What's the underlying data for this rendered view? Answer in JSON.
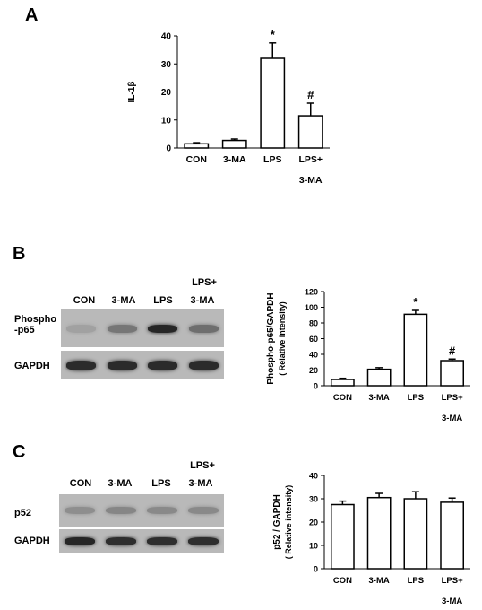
{
  "panels": {
    "a": "A",
    "b": "B",
    "c": "C"
  },
  "blots": {
    "b": {
      "lanes": [
        "CON",
        "3-MA",
        "LPS",
        "3-MA"
      ],
      "lanes_top": [
        "",
        "",
        "",
        "LPS+"
      ],
      "rows": [
        {
          "label_lines": [
            "Phospho",
            "-p65"
          ],
          "intensity": [
            0.18,
            0.45,
            0.95,
            0.5
          ]
        },
        {
          "label_lines": [
            "GAPDH"
          ],
          "intensity": [
            0.92,
            0.92,
            0.92,
            0.92
          ]
        }
      ]
    },
    "c": {
      "lanes": [
        "CON",
        "3-MA",
        "LPS",
        "3-MA"
      ],
      "lanes_top": [
        "",
        "",
        "",
        "LPS+"
      ],
      "rows": [
        {
          "label_lines": [
            "p52"
          ],
          "intensity": [
            0.3,
            0.35,
            0.33,
            0.33
          ]
        },
        {
          "label_lines": [
            "GAPDH"
          ],
          "intensity": [
            0.95,
            0.9,
            0.9,
            0.9
          ]
        }
      ]
    }
  },
  "chart_data": [
    {
      "id": "a",
      "type": "bar",
      "categories": [
        [
          "CON"
        ],
        [
          "3-MA"
        ],
        [
          "LPS"
        ],
        [
          "LPS+",
          "3-MA"
        ]
      ],
      "values": [
        1.5,
        2.7,
        32,
        11.5
      ],
      "errors": [
        0.4,
        0.5,
        5.5,
        4.5
      ],
      "annotations": [
        "",
        "",
        "*",
        "#"
      ],
      "ylabel": "IL-1β",
      "ylim": [
        0,
        40
      ],
      "yticks": [
        0,
        10,
        20,
        30,
        40
      ]
    },
    {
      "id": "b",
      "type": "bar",
      "categories": [
        [
          "CON"
        ],
        [
          "3-MA"
        ],
        [
          "LPS"
        ],
        [
          "LPS+",
          "3-MA"
        ]
      ],
      "values": [
        8,
        21,
        91,
        32
      ],
      "errors": [
        1.5,
        2,
        5,
        2
      ],
      "annotations": [
        "",
        "",
        "*",
        "#"
      ],
      "ylabel": "Phospho-p65/GAPDH",
      "ylabel2": "( Relative intensity)",
      "ylim": [
        0,
        120
      ],
      "yticks": [
        0,
        20,
        40,
        60,
        80,
        100,
        120
      ]
    },
    {
      "id": "c",
      "type": "bar",
      "categories": [
        [
          "CON"
        ],
        [
          "3-MA"
        ],
        [
          "LPS"
        ],
        [
          "LPS+",
          "3-MA"
        ]
      ],
      "values": [
        27.5,
        30.5,
        30,
        28.5
      ],
      "errors": [
        1.5,
        1.8,
        3,
        1.8
      ],
      "annotations": [
        "",
        "",
        "",
        ""
      ],
      "ylabel": "p52 / GAPDH",
      "ylabel2": "( Relative intensity)",
      "ylim": [
        0,
        40
      ],
      "yticks": [
        0,
        10,
        20,
        30,
        40
      ]
    }
  ]
}
